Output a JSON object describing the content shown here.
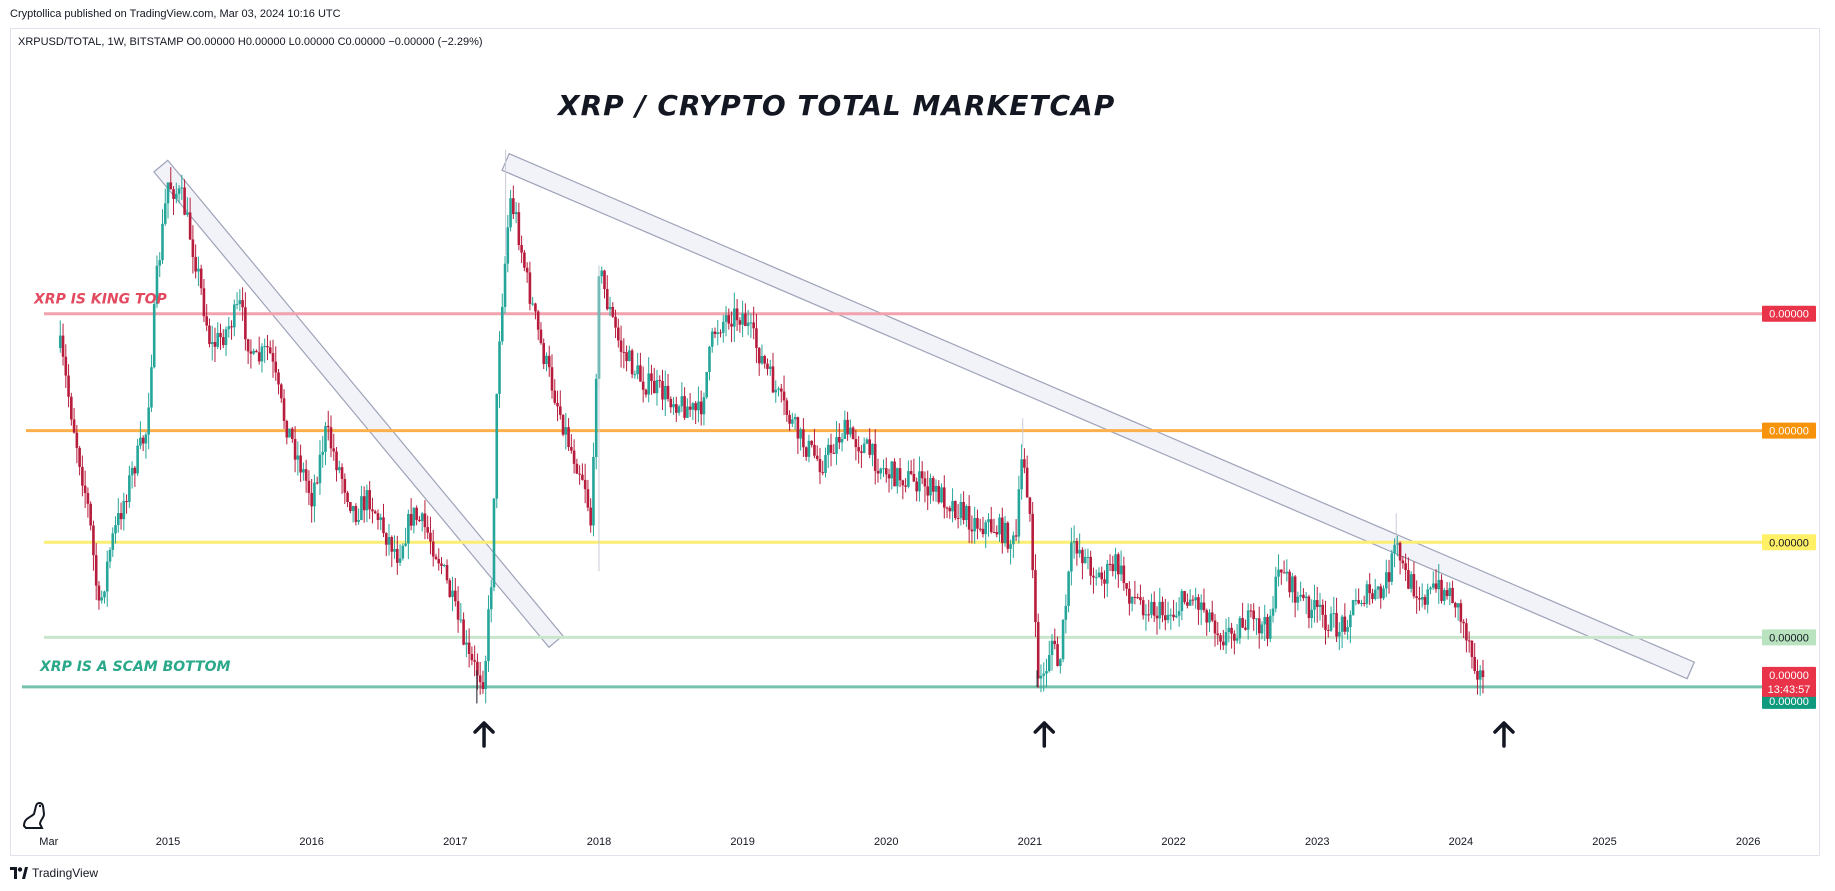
{
  "header": {
    "published": "Cryptollica published on TradingView.com, Mar 03, 2024 10:16 UTC"
  },
  "legend": {
    "text": "XRPUSD/TOTAL, 1W, BITSTAMP  O0.00000  H0.00000  L0.00000  C0.00000  −0.00000 (−2.29%)"
  },
  "footer": {
    "brand": "TradingView"
  },
  "colors": {
    "up": "#26a69a",
    "down": "#b71c3c",
    "wick": "#131722",
    "king": "#f2a2ad",
    "orange": "#fbb04b",
    "yellow": "#fbee72",
    "green_light": "#c9e6cc",
    "teal": "#74c2ac",
    "channel": "#9da3b8",
    "channel_fill": "#eceef5"
  },
  "chart_data": {
    "type": "candlestick",
    "title": "XRP / CRYPTO TOTAL MARKETCAP",
    "xlabel": "",
    "ylabel": "",
    "x_ticks": [
      "Mar",
      "2015",
      "2016",
      "2017",
      "2018",
      "2019",
      "2020",
      "2021",
      "2022",
      "2023",
      "2024",
      "2025",
      "2026"
    ],
    "x_tick_years": [
      2014.17,
      2015,
      2016,
      2017,
      2018,
      2019,
      2020,
      2021,
      2022,
      2023,
      2024,
      2025,
      2026
    ],
    "x_range": [
      2013.9,
      2026.5
    ],
    "y_range_relative": [
      0,
      1
    ],
    "y_scale": "log",
    "annotations": [
      {
        "label": "XRP IS KING TOP",
        "color": "#e34a5f"
      },
      {
        "label": "XRP IS A SCAM BOTTOM",
        "color": "#2aa88a"
      }
    ],
    "horizontal_levels": [
      {
        "name": "king-top-line",
        "label": "0.00000",
        "level": 0.2585,
        "color": "#f2a2ad",
        "badge": "#e83349"
      },
      {
        "name": "orange-line",
        "label": "0.00000",
        "level": 0.4,
        "color": "#fbb04b",
        "badge": "#f7930a"
      },
      {
        "name": "yellow-line",
        "label": "0.00000",
        "level": 0.535,
        "color": "#fbee72",
        "badge": "#fff066"
      },
      {
        "name": "light-green-line",
        "label": "0.00000",
        "level": 0.65,
        "color": "#c9e6cc",
        "badge": "#b9e3bf"
      },
      {
        "name": "scam-bottom-line",
        "label": "0.00000",
        "level": 0.71,
        "color": "#74c2ac",
        "badge": "#0f9a7e"
      }
    ],
    "price_tag": {
      "label": "0.00000",
      "countdown": "13:43:57",
      "color": "#e83349"
    },
    "arrow_years": [
      2017.2,
      2021.1,
      2024.3
    ],
    "trend_channels": [
      {
        "from": [
          2014.95,
          0.08
        ],
        "to": [
          2017.7,
          0.655
        ]
      },
      {
        "from": [
          2017.35,
          0.075
        ],
        "to": [
          2025.6,
          0.69
        ]
      }
    ],
    "price_path": [
      [
        2014.25,
        0.3
      ],
      [
        2014.35,
        0.4
      ],
      [
        2014.45,
        0.5
      ],
      [
        2014.52,
        0.62
      ],
      [
        2014.6,
        0.54
      ],
      [
        2014.75,
        0.45
      ],
      [
        2014.85,
        0.4
      ],
      [
        2014.92,
        0.22
      ],
      [
        2015.0,
        0.1
      ],
      [
        2015.1,
        0.12
      ],
      [
        2015.2,
        0.2
      ],
      [
        2015.3,
        0.3
      ],
      [
        2015.4,
        0.28
      ],
      [
        2015.5,
        0.25
      ],
      [
        2015.6,
        0.32
      ],
      [
        2015.7,
        0.3
      ],
      [
        2015.8,
        0.38
      ],
      [
        2015.9,
        0.43
      ],
      [
        2016.0,
        0.48
      ],
      [
        2016.1,
        0.4
      ],
      [
        2016.2,
        0.45
      ],
      [
        2016.3,
        0.5
      ],
      [
        2016.4,
        0.48
      ],
      [
        2016.5,
        0.52
      ],
      [
        2016.6,
        0.55
      ],
      [
        2016.7,
        0.5
      ],
      [
        2016.8,
        0.52
      ],
      [
        2016.9,
        0.56
      ],
      [
        2017.0,
        0.62
      ],
      [
        2017.1,
        0.68
      ],
      [
        2017.2,
        0.7
      ],
      [
        2017.25,
        0.58
      ],
      [
        2017.3,
        0.3
      ],
      [
        2017.38,
        0.12
      ],
      [
        2017.42,
        0.14
      ],
      [
        2017.5,
        0.22
      ],
      [
        2017.6,
        0.3
      ],
      [
        2017.7,
        0.36
      ],
      [
        2017.8,
        0.42
      ],
      [
        2017.9,
        0.46
      ],
      [
        2017.95,
        0.52
      ],
      [
        2018.0,
        0.2
      ],
      [
        2018.05,
        0.24
      ],
      [
        2018.15,
        0.3
      ],
      [
        2018.3,
        0.34
      ],
      [
        2018.5,
        0.36
      ],
      [
        2018.6,
        0.37
      ],
      [
        2018.7,
        0.38
      ],
      [
        2018.8,
        0.28
      ],
      [
        2018.9,
        0.26
      ],
      [
        2019.0,
        0.26
      ],
      [
        2019.1,
        0.3
      ],
      [
        2019.25,
        0.36
      ],
      [
        2019.4,
        0.41
      ],
      [
        2019.55,
        0.44
      ],
      [
        2019.7,
        0.4
      ],
      [
        2019.85,
        0.42
      ],
      [
        2020.0,
        0.45
      ],
      [
        2020.2,
        0.46
      ],
      [
        2020.4,
        0.48
      ],
      [
        2020.6,
        0.51
      ],
      [
        2020.8,
        0.52
      ],
      [
        2020.9,
        0.54
      ],
      [
        2020.95,
        0.42
      ],
      [
        2021.0,
        0.5
      ],
      [
        2021.05,
        0.69
      ],
      [
        2021.1,
        0.7
      ],
      [
        2021.15,
        0.65
      ],
      [
        2021.2,
        0.69
      ],
      [
        2021.3,
        0.53
      ],
      [
        2021.4,
        0.56
      ],
      [
        2021.5,
        0.58
      ],
      [
        2021.6,
        0.56
      ],
      [
        2021.7,
        0.6
      ],
      [
        2021.8,
        0.61
      ],
      [
        2021.9,
        0.62
      ],
      [
        2022.0,
        0.62
      ],
      [
        2022.1,
        0.6
      ],
      [
        2022.2,
        0.61
      ],
      [
        2022.35,
        0.65
      ],
      [
        2022.5,
        0.63
      ],
      [
        2022.65,
        0.64
      ],
      [
        2022.75,
        0.56
      ],
      [
        2022.85,
        0.6
      ],
      [
        2023.0,
        0.62
      ],
      [
        2023.15,
        0.64
      ],
      [
        2023.3,
        0.6
      ],
      [
        2023.45,
        0.6
      ],
      [
        2023.55,
        0.54
      ],
      [
        2023.62,
        0.58
      ],
      [
        2023.75,
        0.6
      ],
      [
        2023.85,
        0.59
      ],
      [
        2023.95,
        0.6
      ],
      [
        2024.05,
        0.65
      ],
      [
        2024.12,
        0.69
      ],
      [
        2024.17,
        0.71
      ]
    ],
    "spikes": [
      {
        "year": 2017.35,
        "high": 0.06
      },
      {
        "year": 2018.0,
        "high": 0.57
      },
      {
        "year": 2020.95,
        "high": 0.385
      },
      {
        "year": 2023.55,
        "high": 0.5
      },
      {
        "year": 2017.15,
        "low": 0.73
      },
      {
        "year": 2021.05,
        "low": 0.71
      }
    ]
  }
}
